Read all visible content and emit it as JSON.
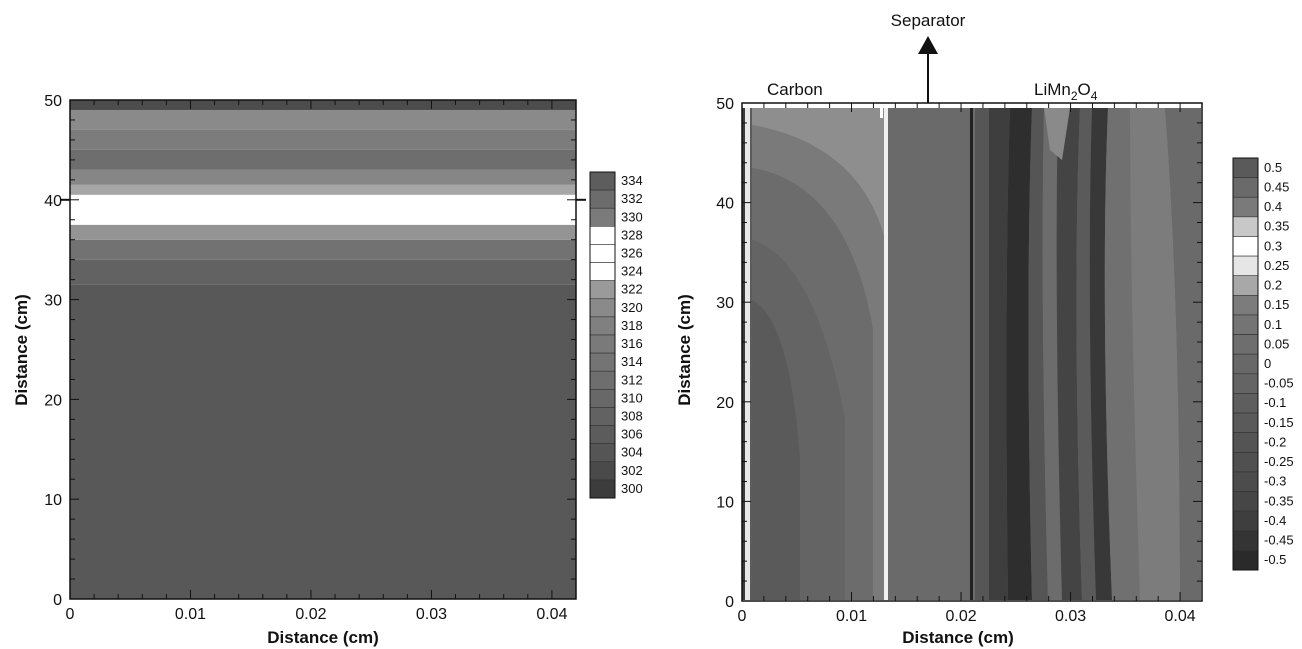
{
  "chart_data": [
    {
      "type": "heatmap",
      "xlabel": "Distance (cm)",
      "ylabel": "Distance (cm)",
      "xlim": [
        0,
        0.042
      ],
      "ylim": [
        0,
        50
      ],
      "xticks": [
        "0",
        "0.01",
        "0.02",
        "0.03",
        "0.04"
      ],
      "yticks": [
        "0",
        "10",
        "20",
        "30",
        "40",
        "50"
      ],
      "xtick_values": [
        0,
        0.01,
        0.02,
        0.03,
        0.04
      ],
      "ytick_values": [
        0,
        10,
        20,
        30,
        40,
        50
      ],
      "colorbar": {
        "labels": [
          "334",
          "332",
          "330",
          "328",
          "326",
          "324",
          "322",
          "320",
          "318",
          "316",
          "314",
          "312",
          "310",
          "308",
          "306",
          "304",
          "302",
          "300"
        ],
        "level_colors": [
          "#5d5d5d",
          "#6c6c6c",
          "#7b7b7b",
          "#ffffff",
          "#ffffff",
          "#ffffff",
          "#9a9a9a",
          "#8a8a8a",
          "#808080",
          "#7a7a7a",
          "#747474",
          "#6e6e6e",
          "#686868",
          "#626262",
          "#5c5c5c",
          "#555555",
          "#4a4a4a",
          "#3c3c3c"
        ]
      },
      "bands": [
        {
          "y0": 0,
          "y1": 31.5,
          "color": "#585858"
        },
        {
          "y0": 31.5,
          "y1": 34,
          "color": "#626262"
        },
        {
          "y0": 34,
          "y1": 36,
          "color": "#727272"
        },
        {
          "y0": 36,
          "y1": 37.5,
          "color": "#949494"
        },
        {
          "y0": 37.5,
          "y1": 40.5,
          "color": "#ffffff"
        },
        {
          "y0": 40.5,
          "y1": 41.5,
          "color": "#a6a6a6"
        },
        {
          "y0": 41.5,
          "y1": 43,
          "color": "#868686"
        },
        {
          "y0": 43,
          "y1": 45,
          "color": "#6e6e6e"
        },
        {
          "y0": 45,
          "y1": 47,
          "color": "#7c7c7c"
        },
        {
          "y0": 47,
          "y1": 49,
          "color": "#8a8a8a"
        },
        {
          "y0": 49,
          "y1": 50,
          "color": "#4c4c4c"
        }
      ]
    },
    {
      "type": "heatmap",
      "xlabel": "Distance (cm)",
      "ylabel": "Distance (cm)",
      "xlim": [
        0,
        0.042
      ],
      "ylim": [
        0,
        50
      ],
      "xticks": [
        "0",
        "0.01",
        "0.02",
        "0.03",
        "0.04"
      ],
      "yticks": [
        "0",
        "10",
        "20",
        "30",
        "40",
        "50"
      ],
      "xtick_values": [
        0,
        0.01,
        0.02,
        0.03,
        0.04
      ],
      "ytick_values": [
        0,
        10,
        20,
        30,
        40,
        50
      ],
      "annotations": {
        "carbon": "Carbon",
        "separator": "Separator",
        "cathode_parts": [
          "LiMn",
          "2",
          "O",
          "4"
        ]
      },
      "region_boundaries_x": [
        0.0014,
        0.0138,
        0.0215
      ],
      "colorbar": {
        "labels": [
          "0.5",
          "0.45",
          "0.4",
          "0.35",
          "0.3",
          "0.25",
          "0.2",
          "0.15",
          "0.1",
          "0.05",
          "0",
          "-0.05",
          "-0.1",
          "-0.15",
          "-0.2",
          "-0.25",
          "-0.3",
          "-0.35",
          "-0.4",
          "-0.45",
          "-0.5"
        ],
        "level_colors": [
          "#5a5a5a",
          "#6a6a6a",
          "#7a7a7a",
          "#c8c8c8",
          "#ffffff",
          "#e6e6e6",
          "#a8a8a8",
          "#7c7c7c",
          "#747474",
          "#6e6e6e",
          "#686868",
          "#646464",
          "#5e5e5e",
          "#5a5a5a",
          "#545454",
          "#505050",
          "#4c4c4c",
          "#464646",
          "#3e3e3e",
          "#343434",
          "#2a2a2a"
        ]
      }
    }
  ]
}
